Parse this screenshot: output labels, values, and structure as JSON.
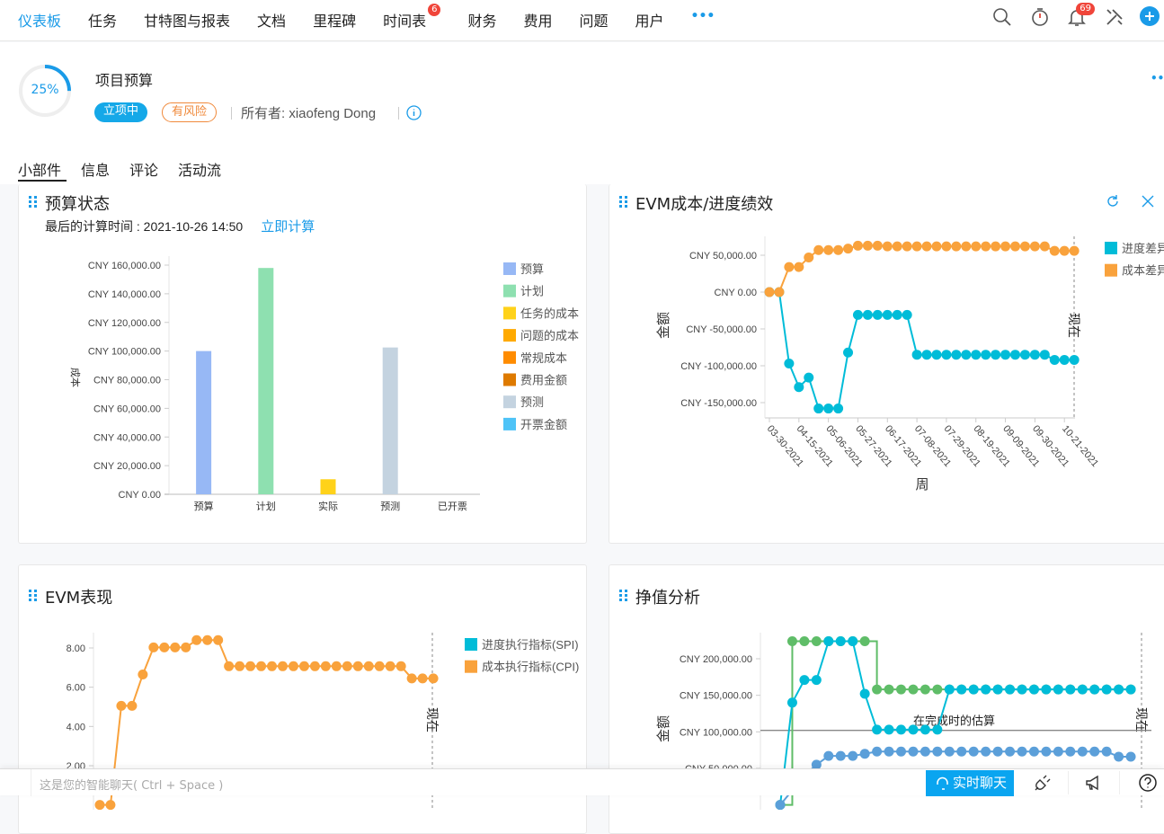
{
  "nav": {
    "items": [
      "仪表板",
      "任务",
      "甘特图与报表",
      "文档",
      "里程碑",
      "时间表",
      "财务",
      "费用",
      "问题",
      "用户"
    ],
    "active": "仪表板",
    "timesheet_badge": "6",
    "more": "•••",
    "notification_badge": "69",
    "icons": [
      "search-icon",
      "timer-icon",
      "bell-icon",
      "tools-icon",
      "plus-icon"
    ]
  },
  "project": {
    "progress": 25,
    "progress_label": "25%",
    "title": "项目预算",
    "status": "立项中",
    "risk": "有风险",
    "owner": "所有者: xiaofeng Dong",
    "more": "•••"
  },
  "tabs": [
    "小部件",
    "信息",
    "评论",
    "活动流"
  ],
  "active_tab": "小部件",
  "colors": {
    "accent": "#1a9be8",
    "cyan": "#00bcd8",
    "orange": "#f9a23c",
    "green": "#5fbd68",
    "blue": "#5b9fd9",
    "risk": "#f08a3c"
  },
  "widgets": {
    "budget": {
      "title": "预算状态",
      "calc_label": "最后的计算时间 : 2021-10-26 14:50",
      "calc_now": "立即计算"
    },
    "evm_variance": {
      "title": "EVM成本/进度绩效"
    },
    "evm_perf": {
      "title": "EVM表现"
    },
    "earned_value": {
      "title": "挣值分析"
    }
  },
  "chart_data": [
    {
      "type": "bar",
      "title": "预算状态",
      "ylabel": "成本",
      "categories": [
        "预算",
        "计划",
        "实际",
        "预测",
        "已开票"
      ],
      "values": [
        100000,
        158000,
        10500,
        102500,
        0
      ],
      "bar_colors": [
        "#97b8f5",
        "#8ee0b0",
        "#ffd21a",
        "#c4d3e0",
        "#4ec3f7"
      ],
      "ylim": [
        0,
        160000
      ],
      "yticks": [
        "CNY 0.00",
        "CNY 20,000.00",
        "CNY 40,000.00",
        "CNY 60,000.00",
        "CNY 80,000.00",
        "CNY 100,000.00",
        "CNY 120,000.00",
        "CNY 140,000.00",
        "CNY 160,000.00"
      ],
      "legend": [
        {
          "name": "预算",
          "color": "#97b8f5"
        },
        {
          "name": "计划",
          "color": "#8ee0b0"
        },
        {
          "name": "任务的成本",
          "color": "#ffd21a"
        },
        {
          "name": "问题的成本",
          "color": "#ffaa00"
        },
        {
          "name": "常规成本",
          "color": "#ff8c00"
        },
        {
          "name": "费用金额",
          "color": "#de7a00"
        },
        {
          "name": "预测",
          "color": "#c4d3e0"
        },
        {
          "name": "开票金额",
          "color": "#4ec3f7"
        }
      ],
      "legend_position": "right"
    },
    {
      "type": "line",
      "title": "EVM成本/进度绩效",
      "xlabel": "周",
      "ylabel": "金额",
      "xticks": [
        "03-30-2021",
        "04-15-2021",
        "05-06-2021",
        "05-27-2021",
        "06-17-2021",
        "07-08-2021",
        "07-29-2021",
        "08-19-2021",
        "09-09-2021",
        "09-30-2021",
        "10-21-2021"
      ],
      "yticks": [
        "CNY -150,000.00",
        "CNY -100,000.00",
        "CNY -50,000.00",
        "CNY 0.00",
        "CNY 50,000.00"
      ],
      "ylim": [
        -165000,
        72000
      ],
      "now_label": "现在",
      "series": [
        {
          "name": "进度差异",
          "color": "#00bcd8",
          "values": [
            0,
            0,
            -97000,
            -129000,
            -116000,
            -158000,
            -158000,
            -158000,
            -82000,
            -31000,
            -31000,
            -31000,
            -31000,
            -31000,
            -31000,
            -85000,
            -85000,
            -85000,
            -85000,
            -85000,
            -85000,
            -85000,
            -85000,
            -85000,
            -85000,
            -85000,
            -85000,
            -85000,
            -85000,
            -92000,
            -92000,
            -92000
          ]
        },
        {
          "name": "成本差异",
          "color": "#f9a23c",
          "values": [
            0,
            0,
            34000,
            34000,
            47000,
            57000,
            57000,
            57000,
            59000,
            63000,
            63000,
            63000,
            62000,
            62000,
            62000,
            62000,
            62000,
            62000,
            62000,
            62000,
            62000,
            62000,
            62000,
            62000,
            62000,
            62000,
            62000,
            62000,
            62000,
            56000,
            56000,
            56000
          ]
        }
      ],
      "legend_position": "right"
    },
    {
      "type": "line",
      "title": "EVM表现",
      "yticks": [
        "2.00",
        "4.00",
        "6.00",
        "8.00"
      ],
      "ylim": [
        0,
        8.8
      ],
      "now_label": "现在",
      "series": [
        {
          "name": "进度执行指标(SPI)",
          "color": "#00bcd8",
          "values": []
        },
        {
          "name": "成本执行指标(CPI)",
          "color": "#f9a23c",
          "values": [
            0,
            0,
            5.05,
            5.05,
            6.65,
            8.03,
            8.03,
            8.03,
            8.03,
            8.4,
            8.4,
            8.4,
            7.07,
            7.07,
            7.07,
            7.07,
            7.07,
            7.07,
            7.07,
            7.07,
            7.07,
            7.07,
            7.07,
            7.07,
            7.07,
            7.07,
            7.07,
            7.07,
            7.07,
            6.45,
            6.45,
            6.45
          ]
        }
      ],
      "legend_position": "right"
    },
    {
      "type": "line",
      "title": "挣值分析",
      "ylabel": "金额",
      "yticks": [
        "CNY 50,000.00",
        "CNY 100,000.00",
        "CNY 150,000.00",
        "CNY 200,000.00"
      ],
      "ylim": [
        0,
        235000
      ],
      "now_label": "现在",
      "reference_line": {
        "label": "在完成时的估算",
        "value": 102000
      },
      "series": [
        {
          "color": "#5fbd68",
          "step": true,
          "values": [
            0,
            224000,
            224000,
            224000,
            224000,
            224000,
            224000,
            224000,
            158000,
            158000,
            158000,
            158000,
            158000,
            158000,
            158000,
            158000,
            158000,
            158000,
            158000,
            158000,
            158000,
            158000,
            158000,
            158000,
            158000,
            158000,
            158000,
            158000,
            158000,
            158000
          ]
        },
        {
          "color": "#00bcd8",
          "values": [
            0,
            140000,
            171000,
            171000,
            224000,
            224000,
            224000,
            152000,
            103000,
            103000,
            103000,
            103000,
            103000,
            103000,
            158000,
            158000,
            158000,
            158000,
            158000,
            158000,
            158000,
            158000,
            158000,
            158000,
            158000,
            158000,
            158000,
            158000,
            158000,
            158000
          ]
        },
        {
          "color": "#5b9fd9",
          "values": [
            0,
            20000,
            40000,
            55000,
            67000,
            67000,
            67000,
            70000,
            73000,
            73000,
            73000,
            73000,
            73000,
            73000,
            73000,
            73000,
            73000,
            73000,
            73000,
            73000,
            73000,
            73000,
            73000,
            73000,
            73000,
            73000,
            73000,
            73000,
            66000,
            66000
          ]
        }
      ]
    }
  ],
  "footer": {
    "chat_placeholder": "这是您的智能聊天( Ctrl + Space )",
    "live_chat": "实时聊天"
  }
}
